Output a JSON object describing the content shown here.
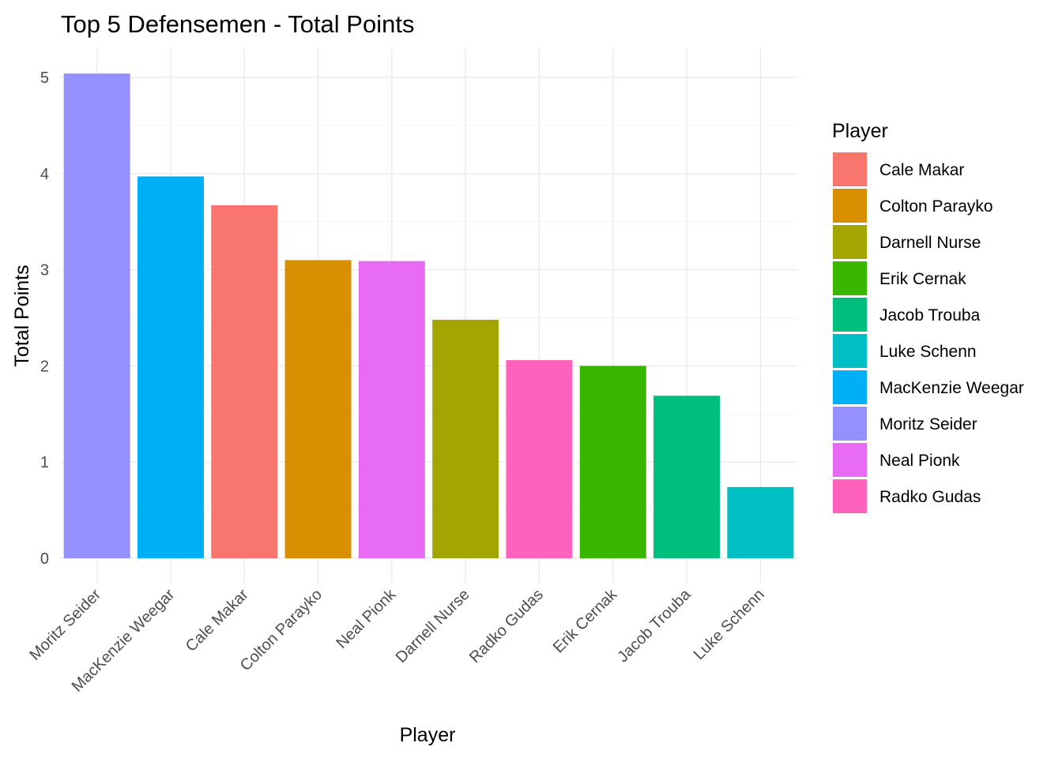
{
  "chart_data": {
    "type": "bar",
    "title": "Top 5 Defensemen - Total Points",
    "xlabel": "Player",
    "ylabel": "Total Points",
    "ylim": [
      0,
      5.3
    ],
    "yticks": [
      0,
      1,
      2,
      3,
      4,
      5
    ],
    "grid": true,
    "legend": {
      "title": "Player",
      "position": "right",
      "entries": [
        {
          "name": "Cale Makar",
          "color": "#F8766D"
        },
        {
          "name": "Colton Parayko",
          "color": "#D89000"
        },
        {
          "name": "Darnell Nurse",
          "color": "#A3A500"
        },
        {
          "name": "Erik Cernak",
          "color": "#39B600"
        },
        {
          "name": "Jacob Trouba",
          "color": "#00BF7D"
        },
        {
          "name": "Luke Schenn",
          "color": "#00BFC4"
        },
        {
          "name": "MacKenzie Weegar",
          "color": "#00B0F6"
        },
        {
          "name": "Moritz Seider",
          "color": "#9590FF"
        },
        {
          "name": "Neal Pionk",
          "color": "#E76BF3"
        },
        {
          "name": "Radko Gudas",
          "color": "#FF62BC"
        }
      ]
    },
    "categories": [
      "Moritz Seider",
      "MacKenzie Weegar",
      "Cale Makar",
      "Colton Parayko",
      "Neal Pionk",
      "Darnell Nurse",
      "Radko Gudas",
      "Erik Cernak",
      "Jacob Trouba",
      "Luke Schenn"
    ],
    "values": [
      5.04,
      3.97,
      3.67,
      3.1,
      3.09,
      2.48,
      2.06,
      2.0,
      1.69,
      0.74
    ],
    "colors": [
      "#9590FF",
      "#00B0F6",
      "#F8766D",
      "#D89000",
      "#E76BF3",
      "#A3A500",
      "#FF62BC",
      "#39B600",
      "#00BF7D",
      "#00BFC4"
    ]
  }
}
